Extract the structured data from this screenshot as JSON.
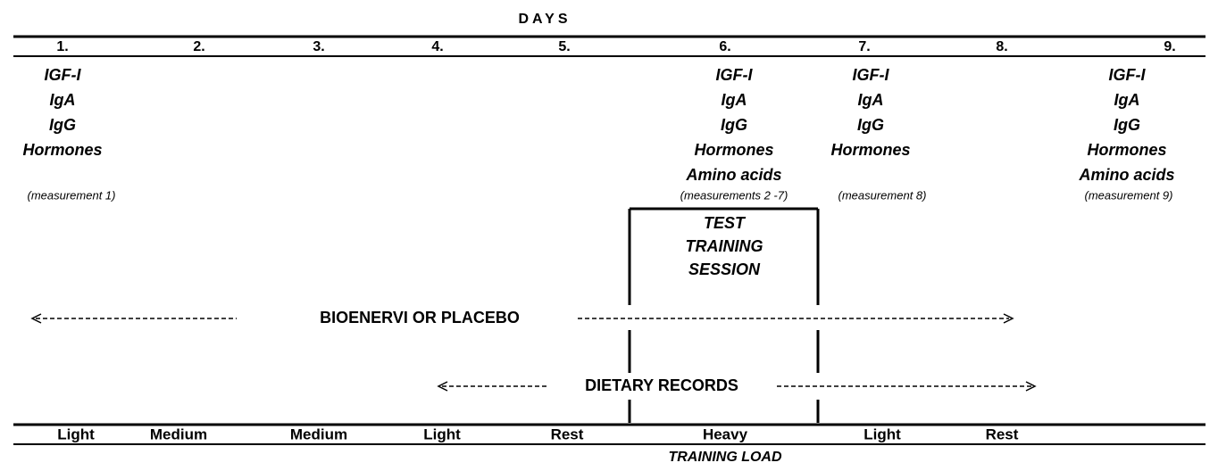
{
  "header": "DAYS",
  "days": [
    "1.",
    "2.",
    "3.",
    "4.",
    "5.",
    "6.",
    "7.",
    "8.",
    "9."
  ],
  "measurements": [
    {
      "items": [
        "IGF-I",
        "IgA",
        "IgG",
        "Hormones"
      ],
      "note": "(measurement 1)"
    },
    {
      "items": [
        "IGF-I",
        "IgA",
        "IgG",
        "Hormones",
        "Amino acids"
      ],
      "note": "(measurements 2 -7)"
    },
    {
      "items": [
        "IGF-I",
        "IgA",
        "IgG",
        "Hormones"
      ],
      "note": "(measurement 8)"
    },
    {
      "items": [
        "IGF-I",
        "IgA",
        "IgG",
        "Hormones",
        "Amino acids"
      ],
      "note": "(measurement 9)"
    }
  ],
  "test_session": [
    "TEST",
    "TRAINING",
    "SESSION"
  ],
  "supplement": "BIOENERVI OR PLACEBO",
  "dietary": "DIETARY RECORDS",
  "training_load": {
    "title": "TRAINING LOAD",
    "levels": [
      "Light",
      "Medium",
      "Medium",
      "Light",
      "Rest",
      "Heavy",
      "Light",
      "Rest"
    ]
  }
}
